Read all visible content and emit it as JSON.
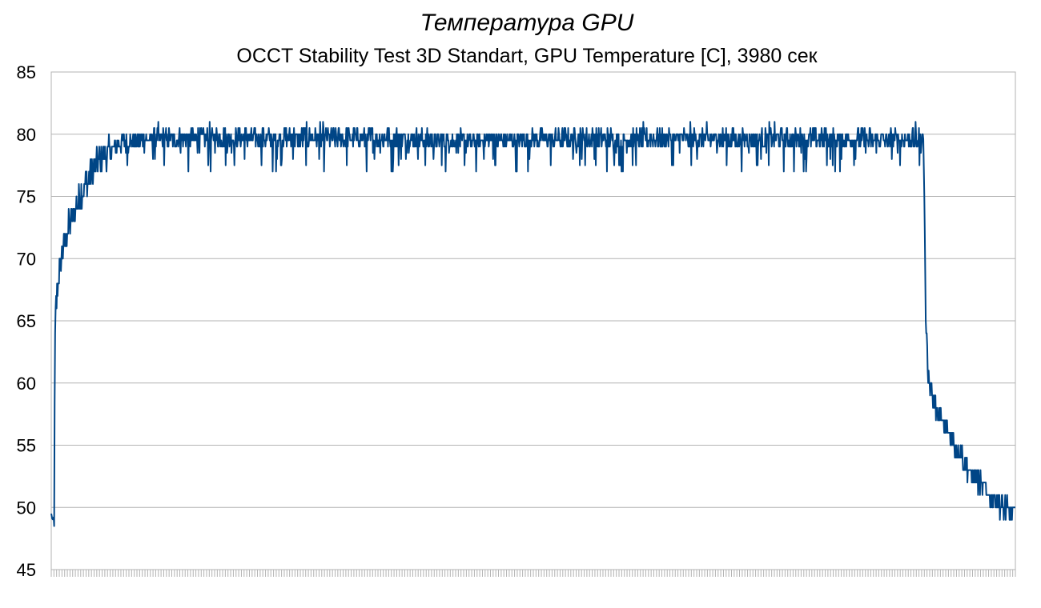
{
  "chart_data": {
    "type": "line",
    "title": "Температура GPU",
    "subtitle": "OCCT Stability Test 3D Standart, GPU Temperature [C], 3980 сек",
    "xlabel": "",
    "ylabel": "",
    "ylim": [
      45,
      85
    ],
    "yticks": [
      "45",
      "50",
      "55",
      "60",
      "65",
      "70",
      "75",
      "80",
      "85"
    ],
    "grid": true,
    "legend": "none",
    "series_color": "#004586",
    "x_range_seconds": [
      0,
      3980
    ],
    "series": [
      {
        "x": [
          0,
          5,
          10,
          12,
          15,
          20,
          30,
          50,
          80,
          110,
          140,
          170,
          200,
          230,
          260,
          300,
          360,
          450,
          600,
          800,
          1000,
          1200,
          1500,
          1700,
          1800,
          2000,
          2300,
          2600,
          2900,
          3200,
          3400,
          3500,
          3560,
          3600,
          3605,
          3610,
          3620,
          3640,
          3660,
          3700,
          3750,
          3800,
          3850,
          3900,
          3950,
          3980
        ],
        "values": [
          49.5,
          49.0,
          49.2,
          48.5,
          63.5,
          66,
          68.5,
          71,
          73,
          74.5,
          76,
          77,
          78,
          78.5,
          79,
          79.3,
          79.5,
          79.6,
          79.7,
          79.7,
          79.7,
          79.7,
          79.6,
          79.4,
          79.5,
          79.6,
          79.6,
          79.6,
          79.6,
          79.6,
          79.6,
          79.6,
          79.5,
          79.6,
          74,
          65,
          61,
          59,
          57.5,
          56,
          54.5,
          52.5,
          51.5,
          50.5,
          49.8,
          49.5
        ]
      }
    ]
  }
}
